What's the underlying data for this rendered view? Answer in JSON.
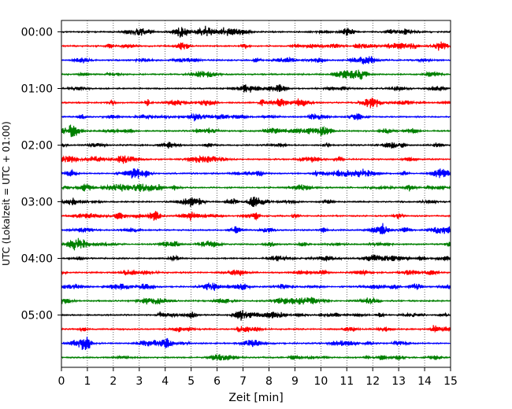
{
  "chart_data": {
    "type": "line",
    "xlabel": "Zeit  [min]",
    "ylabel": "UTC (Lokalzeit = UTC + 01:00)",
    "xlim": [
      0,
      15
    ],
    "x_ticks": [
      0,
      1,
      2,
      3,
      4,
      5,
      6,
      7,
      8,
      9,
      10,
      11,
      12,
      13,
      14,
      15
    ],
    "y_tick_labels": [
      "00:00",
      "01:00",
      "02:00",
      "03:00",
      "04:00",
      "05:00"
    ],
    "y_tick_rows": [
      0,
      4,
      8,
      12,
      16,
      20
    ],
    "minutes_per_row": 15,
    "row_count": 24,
    "grid": "vertical dotted at each minute",
    "row_colors": [
      "#000000",
      "#ff0000",
      "#0000ff",
      "#008000"
    ],
    "rows": [
      {
        "start": "00:00",
        "color": "#000000"
      },
      {
        "start": "00:15",
        "color": "#ff0000"
      },
      {
        "start": "00:30",
        "color": "#0000ff"
      },
      {
        "start": "00:45",
        "color": "#008000"
      },
      {
        "start": "01:00",
        "color": "#000000"
      },
      {
        "start": "01:15",
        "color": "#ff0000"
      },
      {
        "start": "01:30",
        "color": "#0000ff"
      },
      {
        "start": "01:45",
        "color": "#008000"
      },
      {
        "start": "02:00",
        "color": "#000000"
      },
      {
        "start": "02:15",
        "color": "#ff0000"
      },
      {
        "start": "02:30",
        "color": "#0000ff"
      },
      {
        "start": "02:45",
        "color": "#008000"
      },
      {
        "start": "03:00",
        "color": "#000000"
      },
      {
        "start": "03:15",
        "color": "#ff0000"
      },
      {
        "start": "03:30",
        "color": "#0000ff"
      },
      {
        "start": "03:45",
        "color": "#008000"
      },
      {
        "start": "04:00",
        "color": "#000000"
      },
      {
        "start": "04:15",
        "color": "#ff0000"
      },
      {
        "start": "04:30",
        "color": "#0000ff"
      },
      {
        "start": "04:45",
        "color": "#008000"
      },
      {
        "start": "05:00",
        "color": "#000000"
      },
      {
        "start": "05:15",
        "color": "#ff0000"
      },
      {
        "start": "05:30",
        "color": "#0000ff"
      },
      {
        "start": "05:45",
        "color": "#008000"
      }
    ]
  }
}
